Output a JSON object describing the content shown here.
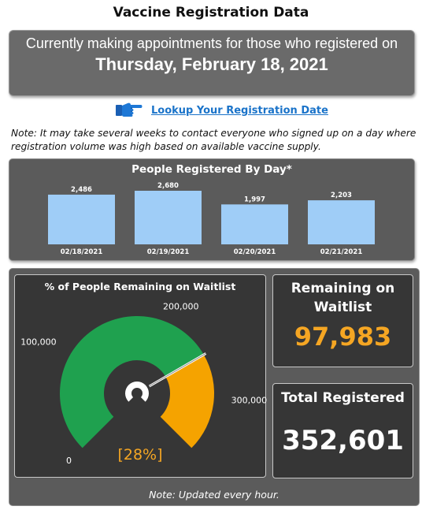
{
  "page": {
    "title": "Vaccine Registration Data"
  },
  "appointment": {
    "line1": "Currently making appointments for those who registered on",
    "date": "Thursday, February 18, 2021"
  },
  "lookup": {
    "link_label": "Lookup Your Registration Date",
    "icon": "pointing-hand-icon"
  },
  "notes": {
    "top": "Note: It may take several weeks to contact everyone who signed up on a day where registration volume was high based on available vaccine supply.",
    "bottom": "Note: Updated every hour."
  },
  "daily": {
    "title": "People Registered By Day*"
  },
  "gauge": {
    "title": "% of People Remaining on Waitlist",
    "percent_label": "[28%]"
  },
  "cards": {
    "remaining_label": "Remaining on Waitlist",
    "remaining_value": "97,983",
    "total_label": "Total Registered",
    "total_value": "352,601"
  },
  "colors": {
    "bar": "#9fcdf7",
    "gauge_fill": "#1fa14f",
    "gauge_rest": "#f5a300",
    "accent_orange": "#f5a623",
    "link": "#1a73c9",
    "panel": "#5b5b5b",
    "card": "#363636"
  },
  "chart_data": [
    {
      "type": "bar",
      "title": "People Registered By Day*",
      "categories": [
        "02/18/2021",
        "02/19/2021",
        "02/20/2021",
        "02/21/2021"
      ],
      "values": [
        2486,
        2680,
        1997,
        2203
      ],
      "value_labels": [
        "2,486",
        "2,680",
        "1,997",
        "2,203"
      ],
      "ylim": [
        0,
        2680
      ],
      "grid": false
    },
    {
      "type": "gauge",
      "title": "% of People Remaining on Waitlist",
      "min": 0,
      "max": 352601,
      "value": 254618,
      "target": 254618,
      "tick_values": [
        0,
        100000,
        200000,
        300000
      ],
      "tick_labels": [
        "0",
        "100,000",
        "200,000",
        "300,000"
      ],
      "percent_label": "[28%]"
    }
  ]
}
